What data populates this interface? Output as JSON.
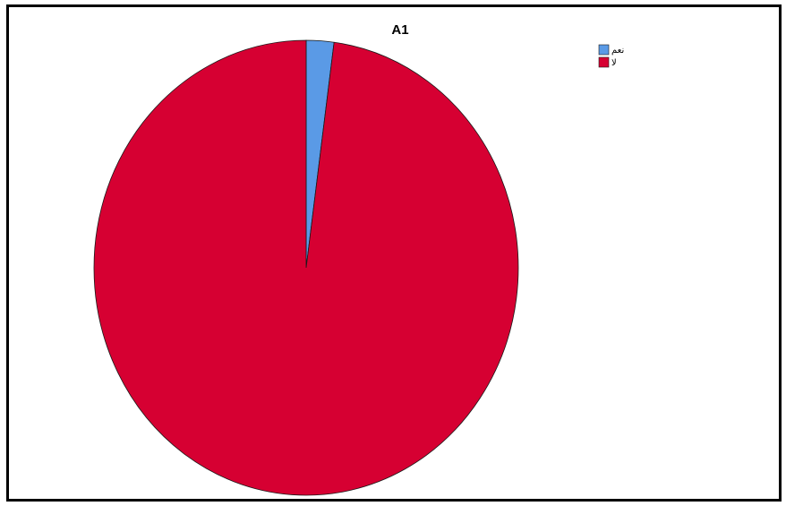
{
  "chart_data": {
    "type": "pie",
    "title": "A1",
    "categories": [
      "نعم",
      "لا"
    ],
    "values": [
      2.1,
      97.9
    ],
    "colors": [
      "#5a9ae6",
      "#d60032"
    ],
    "legend_position": "top-right",
    "start_angle_deg": 0,
    "direction": "clockwise"
  }
}
